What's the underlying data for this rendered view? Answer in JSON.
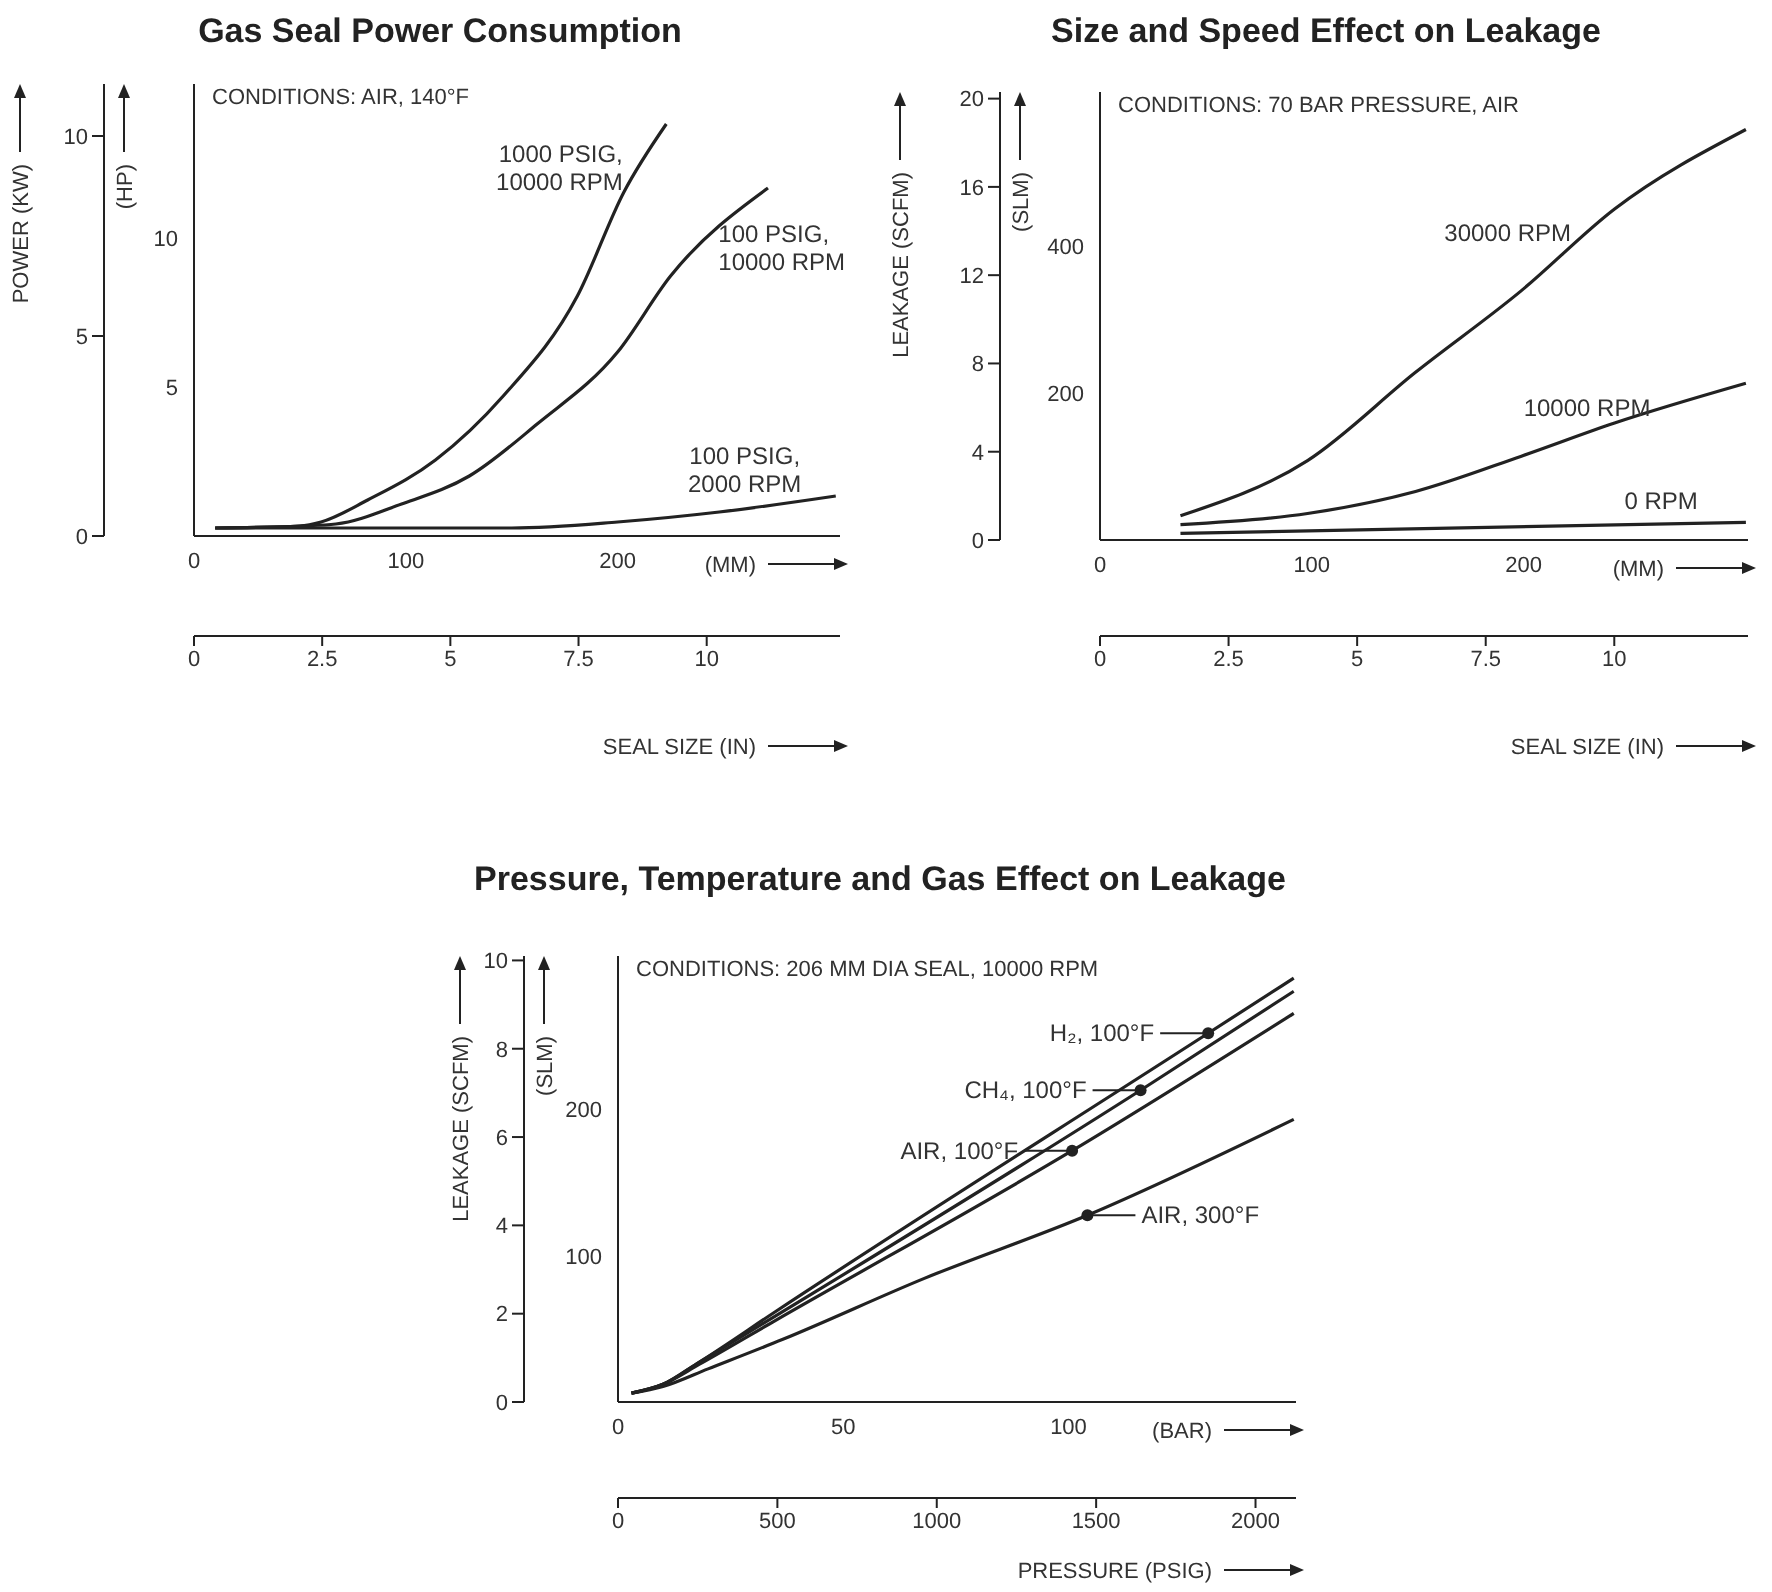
{
  "chart_data": [
    {
      "type": "line",
      "title": "Gas Seal Power Consumption",
      "xlabel": "(MM)",
      "x2label": "SEAL SIZE (IN)",
      "ylabel": "POWER (KW)",
      "y2label": "(HP)",
      "xlim": [
        0,
        305
      ],
      "xticks": [
        0,
        100,
        200
      ],
      "x2lim": [
        0,
        12.6
      ],
      "x2ticks": [
        0,
        2.5,
        5,
        7.5,
        10
      ],
      "ylim": [
        0,
        11.3
      ],
      "yticks": [
        0,
        5,
        10
      ],
      "y2lim": [
        0,
        15.2
      ],
      "y2ticks": [
        5,
        10
      ],
      "series": [
        {
          "color": "#222222",
          "x": [
            10,
            50,
            60,
            82,
            114,
            146,
            181,
            203,
            223
          ],
          "values": [
            0.2,
            0.25,
            0.35,
            0.9,
            1.9,
            3.5,
            6.0,
            8.6,
            10.3
          ]
        },
        {
          "color": "#222222",
          "x": [
            10,
            50,
            67,
            98,
            130,
            162,
            200,
            225,
            271
          ],
          "values": [
            0.2,
            0.25,
            0.3,
            0.8,
            1.5,
            2.8,
            4.6,
            6.5,
            8.7
          ]
        },
        {
          "color": "#222222",
          "x": [
            10,
            100,
            150,
            200,
            248,
            303
          ],
          "values": [
            0.2,
            0.2,
            0.2,
            0.35,
            0.6,
            1.0
          ]
        }
      ],
      "annotations": [
        "CONDITIONS: AIR, 140°F",
        {
          "text": "1000 PSIG,\n10000 RPM",
          "x": 210,
          "y": 9.2
        },
        {
          "text": "100 PSIG,\n10000 RPM",
          "x": 240,
          "y": 7.2
        },
        {
          "text": "100 PSIG,\n2000 RPM",
          "x": 260,
          "y": 0.7
        }
      ]
    },
    {
      "type": "line",
      "title": "Size and Speed Effect on Leakage",
      "xlabel": "(MM)",
      "x2label": "SEAL SIZE (IN)",
      "ylabel": "LEAKAGE (SCFM)",
      "y2label": "(SLM)",
      "xlim": [
        0,
        306
      ],
      "xticks": [
        0,
        100,
        200
      ],
      "x2lim": [
        0,
        12.6
      ],
      "x2ticks": [
        0,
        2.5,
        5,
        7.5,
        10
      ],
      "ylim": [
        0,
        20.3
      ],
      "yticks": [
        0,
        4,
        8,
        12,
        16,
        20
      ],
      "y2lim": [
        0,
        610
      ],
      "y2ticks": [
        200,
        400
      ],
      "series": [
        {
          "color": "#222222",
          "x": [
            38,
            98,
            149,
            199,
            243,
            305
          ],
          "values": [
            1.1,
            3.6,
            7.6,
            11.3,
            15.0,
            18.6
          ]
        },
        {
          "color": "#222222",
          "x": [
            38,
            98,
            149,
            199,
            243,
            305
          ],
          "values": [
            0.7,
            1.2,
            2.2,
            3.8,
            5.3,
            7.1
          ]
        },
        {
          "color": "#222222",
          "x": [
            38,
            305
          ],
          "values": [
            0.3,
            0.8
          ]
        }
      ],
      "annotations": [
        "CONDITIONS: 70 BAR PRESSURE, AIR",
        {
          "text": "30000 RPM",
          "x": 230,
          "y": 13.9
        },
        {
          "text": "10000 RPM",
          "x": 230,
          "y": 4.9
        },
        {
          "text": "0 RPM",
          "x": 265,
          "y": 0.7
        }
      ]
    },
    {
      "type": "line",
      "title": "Pressure, Temperature and Gas Effect on Leakage",
      "xlabel": "(BAR)",
      "x2label": "PRESSURE (PSIG)",
      "ylabel": "LEAKAGE (SCFM)",
      "y2label": "(SLM)",
      "xlim": [
        0,
        150.5
      ],
      "xticks": [
        0,
        50,
        100
      ],
      "x2lim": [
        0,
        2127
      ],
      "x2ticks": [
        0,
        500,
        1000,
        1500,
        2000
      ],
      "ylim": [
        0,
        10.1
      ],
      "yticks": [
        0,
        2,
        4,
        6,
        8,
        10
      ],
      "y2lim": [
        0,
        305
      ],
      "y2ticks": [
        100,
        200
      ],
      "series": [
        {
          "color": "#222222",
          "x": [
            3,
            10,
            18,
            35,
            131,
            150
          ],
          "values": [
            0.2,
            0.4,
            0.9,
            2.05,
            8.35,
            9.6
          ]
        },
        {
          "color": "#222222",
          "x": [
            3,
            10,
            18,
            35,
            116,
            150
          ],
          "values": [
            0.2,
            0.4,
            0.9,
            1.95,
            7.06,
            9.3
          ]
        },
        {
          "color": "#222222",
          "x": [
            3,
            10,
            18,
            35,
            100.8,
            150
          ],
          "values": [
            0.2,
            0.4,
            0.85,
            1.85,
            5.69,
            8.8
          ]
        },
        {
          "color": "#222222",
          "x": [
            3,
            10,
            20,
            36.6,
            68,
            104.2,
            150
          ],
          "values": [
            0.2,
            0.35,
            0.75,
            1.42,
            2.8,
            4.23,
            6.4
          ]
        }
      ],
      "annotations": [
        "CONDITIONS: 206 MM DIA SEAL, 10000 RPM",
        {
          "text": "H₂, 100°F",
          "x": 131,
          "y": 8.35
        },
        {
          "text": "CH₄, 100°F",
          "x": 116,
          "y": 7.06
        },
        {
          "text": "AIR, 100°F",
          "x": 100.8,
          "y": 5.69
        },
        {
          "text": "AIR, 300°F",
          "x": 104.2,
          "y": 4.23
        }
      ]
    }
  ]
}
